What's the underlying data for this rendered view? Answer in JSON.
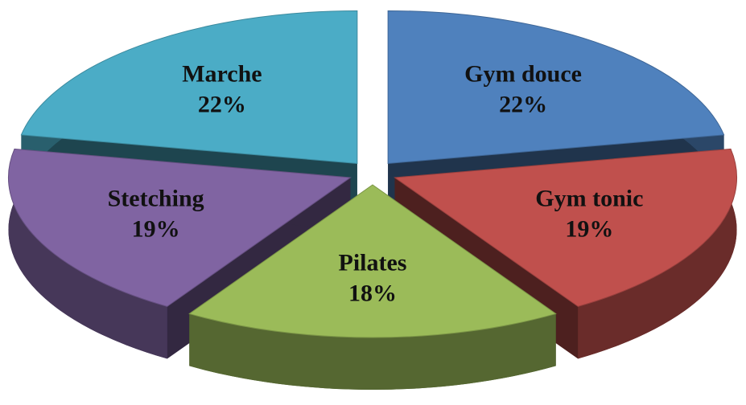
{
  "chart_data": {
    "type": "pie",
    "categories": [
      "Gym douce",
      "Gym tonic",
      "Pilates",
      "Stetching",
      "Marche"
    ],
    "values": [
      22,
      19,
      18,
      19,
      22
    ],
    "value_labels": [
      "22%",
      "19%",
      "18%",
      "19%",
      "22%"
    ],
    "colors": [
      "#4f81bd",
      "#c0504d",
      "#9bbb59",
      "#8064a2",
      "#4bacc6"
    ]
  }
}
